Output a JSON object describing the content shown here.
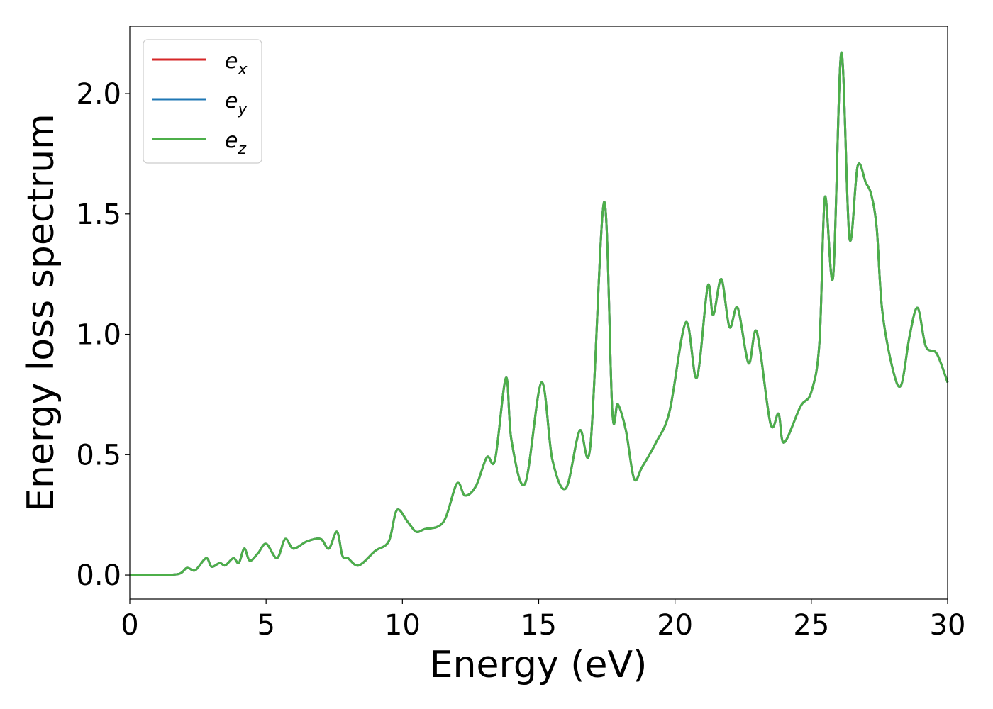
{
  "chart_data": {
    "type": "line",
    "title": "",
    "xlabel": "Energy (eV)",
    "ylabel": "Energy loss spectrum",
    "xlim": [
      0,
      30
    ],
    "ylim": [
      -0.1,
      2.28
    ],
    "xticks": [
      0,
      5,
      10,
      15,
      20,
      25,
      30
    ],
    "xtick_labels": [
      "0",
      "5",
      "10",
      "15",
      "20",
      "25",
      "30"
    ],
    "yticks": [
      0.0,
      0.5,
      1.0,
      1.5,
      2.0
    ],
    "ytick_labels": [
      "0.0",
      "0.5",
      "1.0",
      "1.5",
      "2.0"
    ],
    "grid": false,
    "legend_position": "top-left",
    "x": [
      0,
      1,
      1.8,
      2.1,
      2.4,
      2.8,
      3.0,
      3.3,
      3.5,
      3.8,
      4.0,
      4.2,
      4.4,
      4.7,
      5.0,
      5.4,
      5.7,
      6.0,
      6.5,
      7.0,
      7.3,
      7.6,
      7.8,
      8.0,
      8.4,
      9.0,
      9.5,
      9.8,
      10.2,
      10.5,
      10.8,
      11.5,
      12.0,
      12.3,
      12.7,
      13.1,
      13.4,
      13.8,
      14.0,
      14.5,
      15.1,
      15.5,
      16.0,
      16.5,
      16.9,
      17.4,
      17.7,
      17.9,
      18.2,
      18.5,
      18.8,
      19.3,
      19.8,
      20.4,
      20.8,
      21.2,
      21.4,
      21.7,
      22.0,
      22.3,
      22.7,
      23.0,
      23.5,
      23.8,
      24.0,
      24.6,
      25.0,
      25.3,
      25.5,
      25.8,
      26.1,
      26.4,
      26.7,
      27.0,
      27.2,
      27.4,
      27.6,
      28.0,
      28.3,
      28.6,
      28.9,
      29.2,
      29.6,
      30.0
    ],
    "series": [
      {
        "name": "e_x",
        "label_main": "e",
        "label_sub": "x",
        "color": "#d62728",
        "values": [
          0,
          0,
          0.005,
          0.03,
          0.02,
          0.07,
          0.035,
          0.05,
          0.04,
          0.07,
          0.05,
          0.11,
          0.06,
          0.09,
          0.13,
          0.07,
          0.15,
          0.11,
          0.14,
          0.15,
          0.11,
          0.18,
          0.08,
          0.07,
          0.04,
          0.1,
          0.14,
          0.27,
          0.22,
          0.18,
          0.19,
          0.22,
          0.38,
          0.33,
          0.37,
          0.49,
          0.48,
          0.82,
          0.56,
          0.38,
          0.8,
          0.48,
          0.36,
          0.6,
          0.54,
          1.55,
          0.68,
          0.71,
          0.6,
          0.4,
          0.45,
          0.55,
          0.68,
          1.05,
          0.82,
          1.2,
          1.08,
          1.23,
          1.03,
          1.11,
          0.88,
          1.01,
          0.63,
          0.67,
          0.55,
          0.7,
          0.76,
          0.97,
          1.57,
          1.24,
          2.17,
          1.4,
          1.7,
          1.63,
          1.58,
          1.44,
          1.1,
          0.85,
          0.79,
          0.99,
          1.11,
          0.95,
          0.92,
          0.8
        ]
      },
      {
        "name": "e_y",
        "label_main": "e",
        "label_sub": "y",
        "color": "#1f77b4",
        "values": [
          0,
          0,
          0.005,
          0.03,
          0.02,
          0.07,
          0.035,
          0.05,
          0.04,
          0.07,
          0.05,
          0.11,
          0.06,
          0.09,
          0.13,
          0.07,
          0.15,
          0.11,
          0.14,
          0.15,
          0.11,
          0.18,
          0.08,
          0.07,
          0.04,
          0.1,
          0.14,
          0.27,
          0.22,
          0.18,
          0.19,
          0.22,
          0.38,
          0.33,
          0.37,
          0.49,
          0.48,
          0.82,
          0.56,
          0.38,
          0.8,
          0.48,
          0.36,
          0.6,
          0.54,
          1.55,
          0.68,
          0.71,
          0.6,
          0.4,
          0.45,
          0.55,
          0.68,
          1.05,
          0.82,
          1.2,
          1.08,
          1.23,
          1.03,
          1.11,
          0.88,
          1.01,
          0.63,
          0.67,
          0.55,
          0.7,
          0.76,
          0.97,
          1.57,
          1.24,
          2.17,
          1.4,
          1.7,
          1.63,
          1.58,
          1.44,
          1.1,
          0.85,
          0.79,
          0.99,
          1.11,
          0.95,
          0.92,
          0.8
        ]
      },
      {
        "name": "e_z",
        "label_main": "e",
        "label_sub": "z",
        "color": "#4daf4a",
        "values": [
          0,
          0,
          0.005,
          0.03,
          0.02,
          0.07,
          0.035,
          0.05,
          0.04,
          0.07,
          0.05,
          0.11,
          0.06,
          0.09,
          0.13,
          0.07,
          0.15,
          0.11,
          0.14,
          0.15,
          0.11,
          0.18,
          0.08,
          0.07,
          0.04,
          0.1,
          0.14,
          0.27,
          0.22,
          0.18,
          0.19,
          0.22,
          0.38,
          0.33,
          0.37,
          0.49,
          0.48,
          0.82,
          0.56,
          0.38,
          0.8,
          0.48,
          0.36,
          0.6,
          0.54,
          1.55,
          0.68,
          0.71,
          0.6,
          0.4,
          0.45,
          0.55,
          0.68,
          1.05,
          0.82,
          1.2,
          1.08,
          1.23,
          1.03,
          1.11,
          0.88,
          1.01,
          0.63,
          0.67,
          0.55,
          0.7,
          0.76,
          0.97,
          1.57,
          1.24,
          2.17,
          1.4,
          1.7,
          1.63,
          1.58,
          1.44,
          1.1,
          0.85,
          0.79,
          0.99,
          1.11,
          0.95,
          0.92,
          0.8
        ]
      }
    ]
  }
}
